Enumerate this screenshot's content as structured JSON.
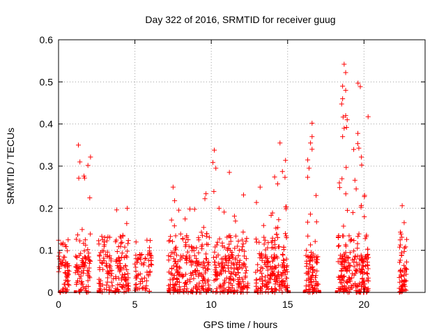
{
  "chart_data": {
    "type": "scatter",
    "title": "Day 322 of 2016, SRMTID for receiver guug",
    "xlabel": "GPS time / hours",
    "ylabel": "SRMTID / TECUs",
    "xlim": [
      0,
      24
    ],
    "ylim": [
      0,
      0.6
    ],
    "xticks": [
      0,
      5,
      10,
      15,
      20
    ],
    "xtick_labels": [
      "0",
      "5",
      "10",
      "15",
      "20"
    ],
    "yticks": [
      0,
      0.1,
      0.2,
      0.3,
      0.4,
      0.5,
      0.6
    ],
    "ytick_labels": [
      "0",
      "0.1",
      "0.2",
      "0.3",
      "0.4",
      "0.5",
      "0.6"
    ],
    "grid": true,
    "marker": "+",
    "color": "#ff0000",
    "clusters": [
      {
        "start": 0.0,
        "end": 0.7,
        "peak": 0.18,
        "n": 60
      },
      {
        "start": 1.1,
        "end": 2.1,
        "peak": 0.35,
        "n": 90
      },
      {
        "start": 2.6,
        "end": 3.6,
        "peak": 0.19,
        "n": 70
      },
      {
        "start": 3.7,
        "end": 4.6,
        "peak": 0.2,
        "n": 80
      },
      {
        "start": 5.0,
        "end": 6.1,
        "peak": 0.16,
        "n": 70
      },
      {
        "start": 7.2,
        "end": 9.9,
        "peak": 0.25,
        "n": 230
      },
      {
        "start": 10.1,
        "end": 12.4,
        "peak": 0.34,
        "n": 200
      },
      {
        "start": 12.9,
        "end": 14.0,
        "peak": 0.25,
        "n": 90
      },
      {
        "start": 14.0,
        "end": 15.0,
        "peak": 0.355,
        "n": 110
      },
      {
        "start": 16.2,
        "end": 17.0,
        "peak": 0.4,
        "n": 90
      },
      {
        "start": 18.3,
        "end": 20.3,
        "peak": 0.54,
        "n": 230
      },
      {
        "start": 22.3,
        "end": 22.8,
        "peak": 0.21,
        "n": 60
      }
    ],
    "highlights": [
      {
        "x": 1.3,
        "y": 0.35
      },
      {
        "x": 10.2,
        "y": 0.338
      },
      {
        "x": 14.5,
        "y": 0.355
      },
      {
        "x": 16.6,
        "y": 0.402
      },
      {
        "x": 18.7,
        "y": 0.542
      },
      {
        "x": 18.8,
        "y": 0.522
      },
      {
        "x": 18.6,
        "y": 0.49
      },
      {
        "x": 18.8,
        "y": 0.48
      },
      {
        "x": 18.6,
        "y": 0.46
      },
      {
        "x": 18.8,
        "y": 0.42
      },
      {
        "x": 18.9,
        "y": 0.41
      },
      {
        "x": 18.7,
        "y": 0.39
      },
      {
        "x": 18.6,
        "y": 0.37
      },
      {
        "x": 16.6,
        "y": 0.37
      },
      {
        "x": 16.5,
        "y": 0.355
      },
      {
        "x": 16.6,
        "y": 0.34
      },
      {
        "x": 1.4,
        "y": 0.31
      },
      {
        "x": 10.3,
        "y": 0.295
      },
      {
        "x": 16.4,
        "y": 0.295
      },
      {
        "x": 7.5,
        "y": 0.25
      },
      {
        "x": 13.2,
        "y": 0.25
      },
      {
        "x": 3.8,
        "y": 0.196
      },
      {
        "x": 22.5,
        "y": 0.206
      },
      {
        "x": 4.5,
        "y": 0.2
      }
    ],
    "zero_runs": [
      {
        "start": 0.0,
        "end": 0.2
      },
      {
        "start": 1.0,
        "end": 1.2
      },
      {
        "start": 2.5,
        "end": 2.7
      },
      {
        "start": 3.5,
        "end": 3.8
      },
      {
        "start": 7.1,
        "end": 7.3
      },
      {
        "start": 12.8,
        "end": 13.0
      },
      {
        "start": 15.0,
        "end": 15.2
      },
      {
        "start": 16.0,
        "end": 16.2
      },
      {
        "start": 17.0,
        "end": 17.2
      },
      {
        "start": 18.1,
        "end": 18.3
      },
      {
        "start": 22.3,
        "end": 22.5
      }
    ]
  }
}
